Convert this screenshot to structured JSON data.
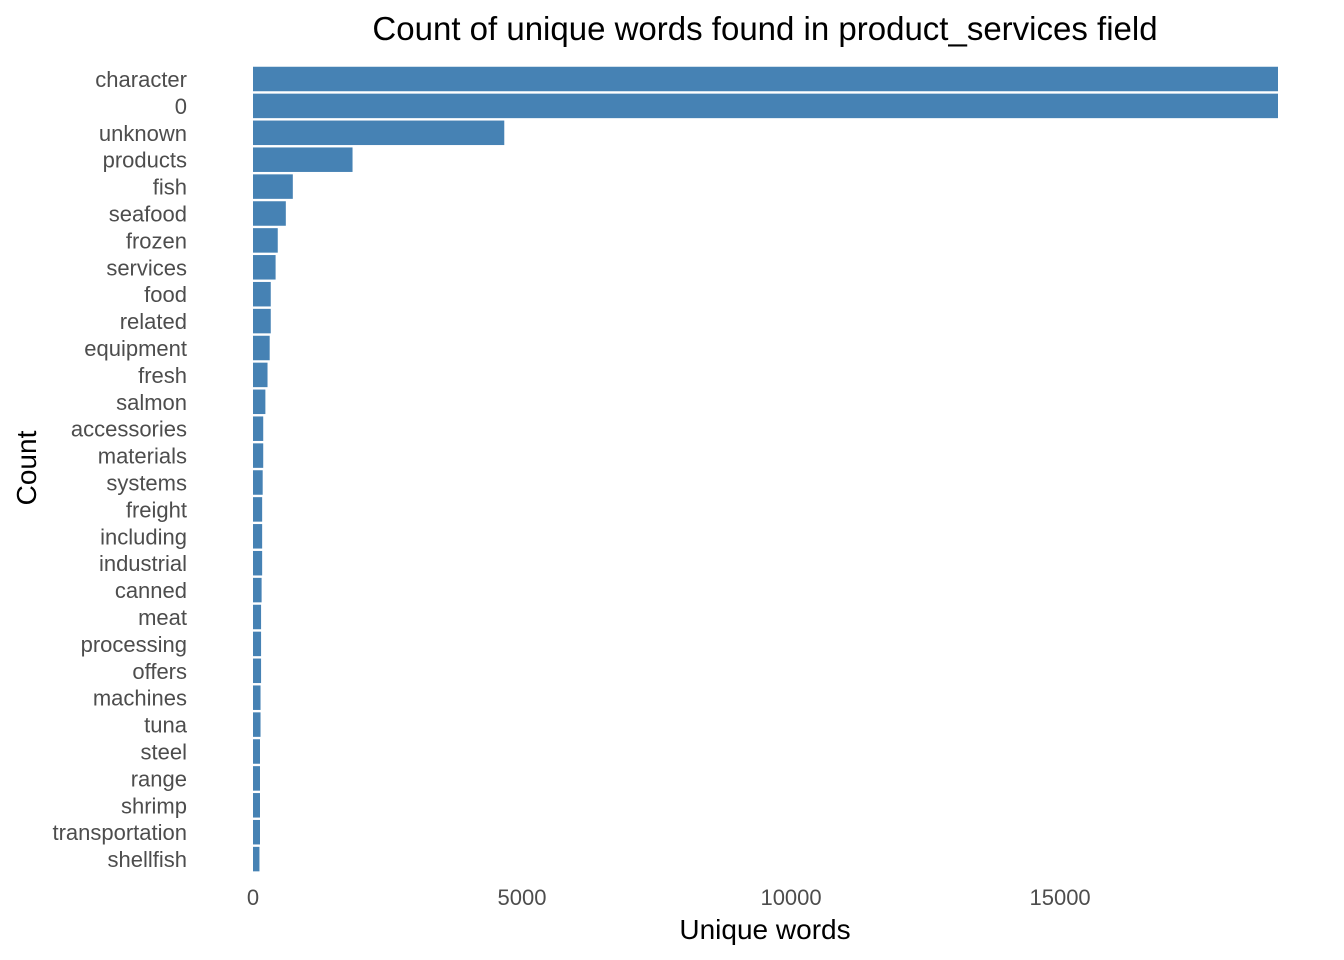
{
  "chart_data": {
    "type": "bar",
    "orientation": "horizontal",
    "title": "Count of unique words found in product_services field",
    "xlabel": "Unique words",
    "ylabel": "Count",
    "categories": [
      "character",
      "0",
      "unknown",
      "products",
      "fish",
      "seafood",
      "frozen",
      "services",
      "food",
      "related",
      "equipment",
      "fresh",
      "salmon",
      "accessories",
      "materials",
      "systems",
      "freight",
      "including",
      "industrial",
      "canned",
      "meat",
      "processing",
      "offers",
      "machines",
      "tuna",
      "steel",
      "range",
      "shrimp",
      "transportation",
      "shellfish"
    ],
    "values": [
      19050,
      19050,
      4670,
      1850,
      740,
      610,
      460,
      420,
      330,
      330,
      310,
      270,
      230,
      190,
      190,
      180,
      170,
      170,
      170,
      160,
      150,
      150,
      150,
      140,
      140,
      130,
      130,
      130,
      130,
      120
    ],
    "xlim": [
      0,
      19050
    ],
    "xticks": [
      0,
      5000,
      10000,
      15000
    ],
    "bar_color": "#4682b4",
    "grid": false,
    "legend": "none"
  }
}
